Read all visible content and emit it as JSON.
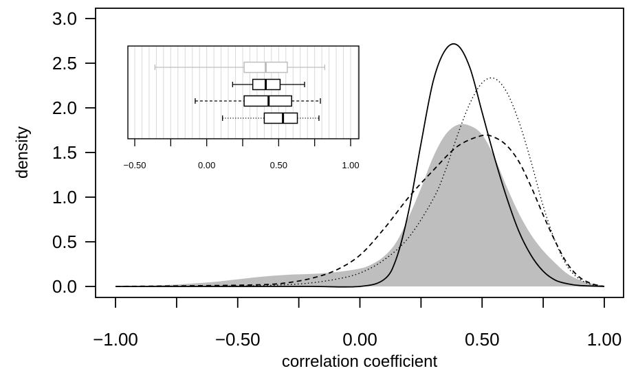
{
  "chart_data": [
    {
      "type": "line",
      "title": "",
      "xlabel": "correlation coefficient",
      "ylabel": "density",
      "xlim": [
        -1.0,
        1.0
      ],
      "ylim": [
        0.0,
        3.0
      ],
      "x_ticks": [
        -1.0,
        -0.75,
        -0.5,
        -0.25,
        0.0,
        0.25,
        0.5,
        0.75,
        1.0
      ],
      "x_tick_labels": [
        "−1.00",
        "−0.50",
        "0.00",
        "0.50",
        "1.00"
      ],
      "x_tick_label_values": [
        -1.0,
        -0.5,
        0.0,
        0.5,
        1.0
      ],
      "y_ticks": [
        0.0,
        0.5,
        1.0,
        1.5,
        2.0,
        2.5,
        3.0
      ],
      "y_tick_labels": [
        "0.0",
        "0.5",
        "1.0",
        "1.5",
        "2.0",
        "2.5",
        "3.0"
      ],
      "grid": false,
      "legend": "none",
      "series": [
        {
          "style": "filled-area",
          "color": "#bebebe",
          "x": [
            -1.0,
            -0.9,
            -0.8,
            -0.7,
            -0.6,
            -0.5,
            -0.4,
            -0.3,
            -0.2,
            -0.1,
            0.0,
            0.05,
            0.1,
            0.15,
            0.2,
            0.25,
            0.3,
            0.35,
            0.4,
            0.45,
            0.5,
            0.55,
            0.6,
            0.65,
            0.7,
            0.75,
            0.8,
            0.85,
            0.9,
            0.95,
            1.0
          ],
          "y": [
            0.0,
            0.005,
            0.015,
            0.03,
            0.05,
            0.08,
            0.11,
            0.13,
            0.14,
            0.16,
            0.2,
            0.25,
            0.34,
            0.5,
            0.78,
            1.1,
            1.45,
            1.7,
            1.81,
            1.8,
            1.7,
            1.45,
            1.12,
            0.82,
            0.58,
            0.4,
            0.26,
            0.14,
            0.07,
            0.03,
            0.01
          ]
        },
        {
          "style": "solid",
          "color": "#000000",
          "x": [
            -1.0,
            -0.5,
            -0.2,
            0.0,
            0.1,
            0.15,
            0.2,
            0.25,
            0.3,
            0.35,
            0.4,
            0.45,
            0.5,
            0.55,
            0.6,
            0.65,
            0.7,
            0.75,
            0.8,
            0.85,
            0.9,
            1.0
          ],
          "y": [
            0.0,
            0.0,
            0.0,
            0.0,
            0.08,
            0.32,
            0.85,
            1.6,
            2.3,
            2.65,
            2.7,
            2.45,
            1.95,
            1.45,
            1.0,
            0.62,
            0.35,
            0.17,
            0.07,
            0.03,
            0.01,
            0.0
          ]
        },
        {
          "style": "dashed",
          "color": "#000000",
          "x": [
            -1.0,
            -0.6,
            -0.4,
            -0.3,
            -0.2,
            -0.1,
            0.0,
            0.1,
            0.2,
            0.3,
            0.4,
            0.5,
            0.55,
            0.6,
            0.65,
            0.7,
            0.75,
            0.8,
            0.85,
            0.9,
            0.95,
            1.0
          ],
          "y": [
            0.0,
            0.01,
            0.02,
            0.04,
            0.09,
            0.18,
            0.35,
            0.65,
            1.0,
            1.3,
            1.57,
            1.69,
            1.67,
            1.58,
            1.4,
            1.12,
            0.8,
            0.5,
            0.25,
            0.1,
            0.03,
            0.0
          ]
        },
        {
          "style": "dotted",
          "color": "#000000",
          "x": [
            -1.0,
            -0.5,
            -0.3,
            -0.2,
            -0.1,
            0.0,
            0.1,
            0.2,
            0.3,
            0.35,
            0.4,
            0.45,
            0.5,
            0.55,
            0.6,
            0.65,
            0.7,
            0.75,
            0.8,
            0.85,
            0.9,
            0.95,
            1.0
          ],
          "y": [
            0.0,
            0.005,
            0.02,
            0.04,
            0.08,
            0.15,
            0.3,
            0.55,
            0.98,
            1.3,
            1.7,
            2.05,
            2.28,
            2.33,
            2.18,
            1.85,
            1.4,
            0.9,
            0.5,
            0.22,
            0.08,
            0.02,
            0.0
          ]
        }
      ]
    },
    {
      "type": "boxplot",
      "title": "",
      "xlim": [
        -0.55,
        1.05
      ],
      "x_ticks": [
        -0.5,
        -0.25,
        0.0,
        0.25,
        0.5,
        0.75,
        1.0
      ],
      "x_tick_labels": [
        "−0.50",
        "0.00",
        "0.50",
        "1.00"
      ],
      "x_tick_label_values": [
        -0.5,
        0.0,
        0.5,
        1.0
      ],
      "grid_x_step": 0.05,
      "boxes": [
        {
          "color": "#bebebe",
          "line": "solid",
          "whisker_low": -0.36,
          "q1": 0.26,
          "median": 0.41,
          "q3": 0.56,
          "whisker_high": 0.82
        },
        {
          "color": "#000000",
          "line": "solid",
          "whisker_low": 0.18,
          "q1": 0.32,
          "median": 0.41,
          "q3": 0.51,
          "whisker_high": 0.68
        },
        {
          "color": "#000000",
          "line": "dashed",
          "whisker_low": -0.08,
          "q1": 0.26,
          "median": 0.43,
          "q3": 0.59,
          "whisker_high": 0.79
        },
        {
          "color": "#000000",
          "line": "dotted",
          "whisker_low": 0.11,
          "q1": 0.4,
          "median": 0.53,
          "q3": 0.63,
          "whisker_high": 0.78
        }
      ]
    }
  ]
}
